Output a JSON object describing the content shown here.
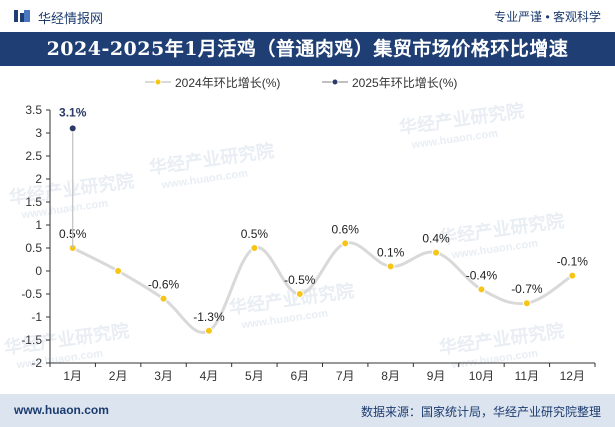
{
  "header": {
    "brand": "华经情报网",
    "tagline": "专业严谨 • 客观科学"
  },
  "title": "2024-2025年1月活鸡（普通肉鸡）集贸市场价格环比增速",
  "watermark": {
    "cn": "华经产业研究院",
    "url": "www.huaon.com"
  },
  "footer": {
    "website": "www.huaon.com",
    "source": "数据来源：国家统计局，华经产业研究院整理"
  },
  "colors": {
    "series_2024": "#f5c518",
    "series_2024_line": "#d9d9d9",
    "series_2025": "#2b3a67",
    "series_2025_line": "#c0c0c0",
    "title_bg": "#1e3e74",
    "footer_bg": "#dce4ef"
  },
  "chart_data": {
    "type": "line",
    "categories": [
      "1月",
      "2月",
      "3月",
      "4月",
      "5月",
      "6月",
      "7月",
      "8月",
      "9月",
      "10月",
      "11月",
      "12月"
    ],
    "series": [
      {
        "name": "2024年环比增长(%)",
        "values": [
          0.5,
          0,
          -0.6,
          -1.3,
          0.5,
          -0.5,
          0.6,
          0.1,
          0.4,
          -0.4,
          -0.7,
          -0.1
        ],
        "data_labels": [
          "0.5%",
          "",
          "-0.6%",
          "-1.3%",
          "0.5%",
          "-0.5%",
          "0.6%",
          "0.1%",
          "0.4%",
          "-0.4%",
          "-0.7%",
          "-0.1%"
        ]
      },
      {
        "name": "2025年环比增长(%)",
        "values": [
          3.1,
          null,
          null,
          null,
          null,
          null,
          null,
          null,
          null,
          null,
          null,
          null
        ],
        "data_labels": [
          "3.1%",
          "",
          "",
          "",
          "",
          "",
          "",
          "",
          "",
          "",
          "",
          ""
        ]
      }
    ],
    "ylim": [
      -2,
      3.5
    ],
    "yticks": [
      "3.5",
      "3",
      "2.5",
      "2",
      "1.5",
      "1",
      "0.5",
      "0",
      "-0.5",
      "-1",
      "-1.5",
      "-2"
    ],
    "grid": false,
    "legend_position": "top-center"
  }
}
